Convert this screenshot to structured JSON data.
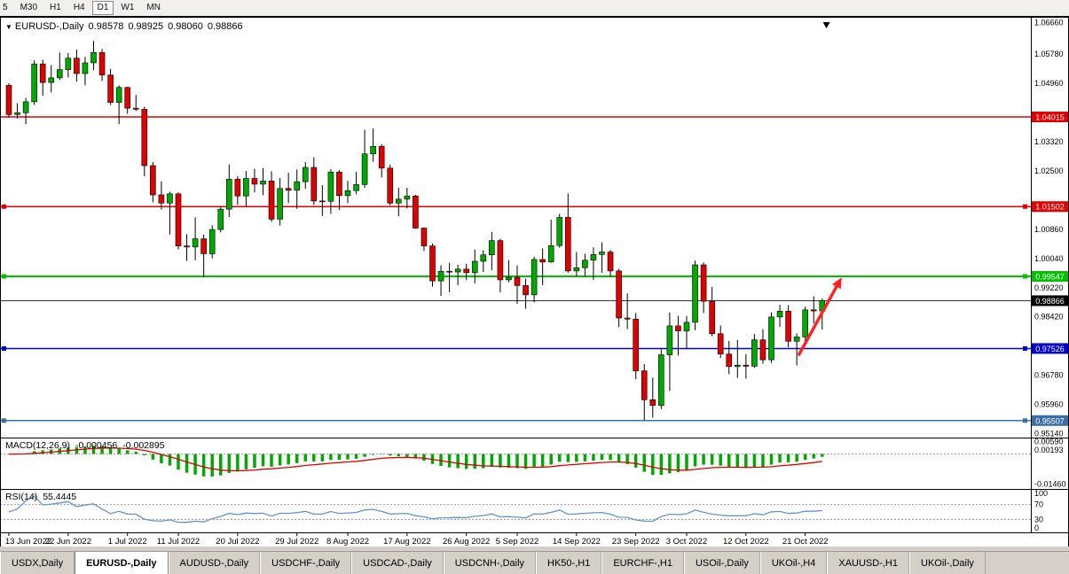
{
  "toolbar": {
    "buttons": [
      {
        "label": "5",
        "active": false
      },
      {
        "label": "M30",
        "active": false
      },
      {
        "label": "H1",
        "active": false
      },
      {
        "label": "H4",
        "active": false
      },
      {
        "label": "D1",
        "active": true
      },
      {
        "label": "W1",
        "active": false
      },
      {
        "label": "MN",
        "active": false
      }
    ]
  },
  "legend": {
    "dropdown_icon": "▼",
    "symbol": "EURUSD-,Daily",
    "open": "0.98578",
    "high": "0.98925",
    "low": "0.98060",
    "close": "0.98866"
  },
  "chart_data": {
    "type": "candlestick",
    "symbol": "EURUSD-,Daily",
    "timeframe": "Daily",
    "view": {
      "price_max": 1.0672,
      "price_min": 0.95055
    },
    "colors": {
      "bull": "#00a800",
      "bear": "#e00000",
      "wick": "#000000",
      "background": "#ffffff",
      "frame": "#000000"
    },
    "price_axis": {
      "ticks": [
        "1.06660",
        "1.05780",
        "1.04960",
        "1.03320",
        "1.02500",
        "1.00860",
        "1.00040",
        "0.99220",
        "0.98420",
        "0.96780",
        "0.95960",
        "0.95140"
      ],
      "badges": [
        {
          "text": "1.04015",
          "bg": "#e00000",
          "fg": "#ffffff"
        },
        {
          "text": "1.01502",
          "bg": "#e00000",
          "fg": "#ffffff"
        },
        {
          "text": "0.99547",
          "bg": "#00c000",
          "fg": "#ffffff"
        },
        {
          "text": "0.98866",
          "bg": "#000000",
          "fg": "#ffffff"
        },
        {
          "text": "0.97526",
          "bg": "#0000cc",
          "fg": "#ffffff"
        },
        {
          "text": "0.95507",
          "bg": "#3a6ea5",
          "fg": "#ffffff"
        }
      ]
    },
    "horizontal_lines": [
      {
        "price": 1.04015,
        "color": "#e00000",
        "width": 1.5,
        "handles": false
      },
      {
        "price": 1.01502,
        "color": "#e00000",
        "width": 1.5,
        "handles": true
      },
      {
        "price": 0.99547,
        "color": "#00c000",
        "width": 2,
        "handles": true
      },
      {
        "price": 0.98866,
        "color": "#333333",
        "width": 1,
        "handles": false
      },
      {
        "price": 0.97526,
        "color": "#0000cc",
        "width": 1.5,
        "handles": true
      },
      {
        "price": 0.95507,
        "color": "#3a6ea5",
        "width": 1.5,
        "handles": true
      }
    ],
    "trend_arrow": {
      "from_index": 93.2,
      "from_price": 0.9733,
      "to_index": 98.3,
      "to_price": 0.9952,
      "color": "#ff2020"
    },
    "shift_marker_index": 96.5,
    "date_labels": [
      {
        "index": 0,
        "text": "13 Jun 2022"
      },
      {
        "index": 7,
        "text": "22 Jun 2022"
      },
      {
        "index": 14,
        "text": "1 Jul 2022"
      },
      {
        "index": 20,
        "text": "11 Jul 2022"
      },
      {
        "index": 27,
        "text": "20 Jul 2022"
      },
      {
        "index": 34,
        "text": "29 Jul 2022"
      },
      {
        "index": 40,
        "text": "8 Aug 2022"
      },
      {
        "index": 47,
        "text": "17 Aug 2022"
      },
      {
        "index": 54,
        "text": "26 Aug 2022"
      },
      {
        "index": 60,
        "text": "5 Sep 2022"
      },
      {
        "index": 67,
        "text": "14 Sep 2022"
      },
      {
        "index": 74,
        "text": "23 Sep 2022"
      },
      {
        "index": 80,
        "text": "3 Oct 2022"
      },
      {
        "index": 87,
        "text": "12 Oct 2022"
      },
      {
        "index": 94,
        "text": "21 Oct 2022"
      }
    ],
    "ohlc": [
      [
        1.049,
        1.0496,
        1.04,
        1.0408
      ],
      [
        1.0408,
        1.044,
        1.0397,
        1.0413
      ],
      [
        1.0413,
        1.0455,
        1.0381,
        1.0444
      ],
      [
        1.0444,
        1.056,
        1.0435,
        1.055
      ],
      [
        1.055,
        1.0562,
        1.0461,
        1.0498
      ],
      [
        1.0498,
        1.0547,
        1.047,
        1.0511
      ],
      [
        1.0511,
        1.0582,
        1.0505,
        1.0534
      ],
      [
        1.0534,
        1.058,
        1.0512,
        1.0566
      ],
      [
        1.0566,
        1.059,
        1.05,
        1.0523
      ],
      [
        1.0523,
        1.057,
        1.049,
        1.0553
      ],
      [
        1.0553,
        1.0615,
        1.0532,
        1.0582
      ],
      [
        1.0582,
        1.0592,
        1.0502,
        1.0519
      ],
      [
        1.0519,
        1.0536,
        1.0435,
        1.0442
      ],
      [
        1.0442,
        1.049,
        1.0381,
        1.0484
      ],
      [
        1.0484,
        1.0486,
        1.041,
        1.0426
      ],
      [
        1.0426,
        1.0463,
        1.0418,
        1.0423
      ],
      [
        1.0423,
        1.043,
        1.0235,
        1.0265
      ],
      [
        1.0265,
        1.0275,
        1.0162,
        1.0183
      ],
      [
        1.0183,
        1.0221,
        1.0142,
        1.016
      ],
      [
        1.016,
        1.0192,
        1.0072,
        1.0186
      ],
      [
        1.0186,
        1.019,
        1.003,
        1.004
      ],
      [
        1.004,
        1.0073,
        0.9998,
        1.0037
      ],
      [
        1.0037,
        1.012,
        1.0,
        1.006
      ],
      [
        1.006,
        1.0072,
        0.9952,
        1.0018
      ],
      [
        1.0018,
        1.0098,
        1.0005,
        1.0086
      ],
      [
        1.0086,
        1.0149,
        1.0078,
        1.0143
      ],
      [
        1.0143,
        1.0268,
        1.0121,
        1.0227
      ],
      [
        1.0227,
        1.0235,
        1.0155,
        1.018
      ],
      [
        1.018,
        1.025,
        1.0152,
        1.0229
      ],
      [
        1.0229,
        1.0256,
        1.019,
        1.0213
      ],
      [
        1.0213,
        1.0258,
        1.0182,
        1.0222
      ],
      [
        1.0222,
        1.0249,
        1.0108,
        1.0115
      ],
      [
        1.0115,
        1.023,
        1.0097,
        1.0201
      ],
      [
        1.0201,
        1.0245,
        1.016,
        1.0196
      ],
      [
        1.0196,
        1.0254,
        1.0144,
        1.022
      ],
      [
        1.022,
        1.0275,
        1.02,
        1.026
      ],
      [
        1.026,
        1.0288,
        1.0155,
        1.0166
      ],
      [
        1.0166,
        1.021,
        1.0124,
        1.0165
      ],
      [
        1.0165,
        1.0255,
        1.013,
        1.0247
      ],
      [
        1.0247,
        1.0253,
        1.0141,
        1.0181
      ],
      [
        1.0181,
        1.0222,
        1.016,
        1.0195
      ],
      [
        1.0195,
        1.0248,
        1.0185,
        1.0212
      ],
      [
        1.0212,
        1.0365,
        1.0203,
        1.0298
      ],
      [
        1.0298,
        1.0369,
        1.0276,
        1.0319
      ],
      [
        1.0319,
        1.0325,
        1.0232,
        1.0258
      ],
      [
        1.0258,
        1.0268,
        1.0154,
        1.016
      ],
      [
        1.016,
        1.0203,
        1.0123,
        1.0171
      ],
      [
        1.0171,
        1.0203,
        1.0145,
        1.018
      ],
      [
        1.018,
        1.0183,
        1.0088,
        1.009
      ],
      [
        1.009,
        1.0092,
        1.0026,
        1.004
      ],
      [
        1.004,
        1.0047,
        0.9926,
        0.9942
      ],
      [
        0.9942,
        0.9986,
        0.99,
        0.9969
      ],
      [
        0.9969,
        0.9993,
        0.991,
        0.9967
      ],
      [
        0.9967,
        0.9987,
        0.993,
        0.9975
      ],
      [
        0.9975,
        0.999,
        0.9944,
        0.9965
      ],
      [
        0.9965,
        1.003,
        0.9935,
        0.9997
      ],
      [
        0.9997,
        1.0028,
        0.9967,
        1.0015
      ],
      [
        1.0015,
        1.0079,
        0.9972,
        1.0055
      ],
      [
        1.0055,
        1.006,
        0.991,
        0.9945
      ],
      [
        0.9945,
        1.0,
        0.9938,
        0.9952
      ],
      [
        0.9952,
        0.9985,
        0.9878,
        0.9929
      ],
      [
        0.9929,
        0.9948,
        0.9864,
        0.9903
      ],
      [
        0.9903,
        1.001,
        0.9882,
        1.0002
      ],
      [
        1.0002,
        1.0033,
        0.993,
        0.9995
      ],
      [
        0.9995,
        1.0114,
        0.9993,
        1.0041
      ],
      [
        1.0041,
        1.013,
        1.0035,
        1.012
      ],
      [
        1.012,
        1.0187,
        0.9965,
        0.997
      ],
      [
        0.997,
        1.0023,
        0.9955,
        0.9979
      ],
      [
        0.9979,
        1.0018,
        0.9954,
        1.0
      ],
      [
        1.0,
        1.0036,
        0.9945,
        1.0016
      ],
      [
        1.0016,
        1.005,
        0.9965,
        1.0023
      ],
      [
        1.0023,
        1.0029,
        0.9954,
        0.997
      ],
      [
        0.997,
        0.9976,
        0.9813,
        0.9838
      ],
      [
        0.9838,
        0.9907,
        0.9807,
        0.9835
      ],
      [
        0.9835,
        0.9852,
        0.9667,
        0.969
      ],
      [
        0.969,
        0.9709,
        0.9552,
        0.9609
      ],
      [
        0.9609,
        0.9671,
        0.9559,
        0.9593
      ],
      [
        0.9593,
        0.975,
        0.9583,
        0.9735
      ],
      [
        0.9735,
        0.9853,
        0.9634,
        0.9816
      ],
      [
        0.9816,
        0.9844,
        0.9733,
        0.9802
      ],
      [
        0.9802,
        0.9844,
        0.9751,
        0.9826
      ],
      [
        0.9826,
        0.9999,
        0.9804,
        0.9987
      ],
      [
        0.9987,
        0.9994,
        0.9852,
        0.9885
      ],
      [
        0.9885,
        0.9925,
        0.9787,
        0.9794
      ],
      [
        0.9794,
        0.9817,
        0.9726,
        0.9737
      ],
      [
        0.9737,
        0.9774,
        0.9681,
        0.9702
      ],
      [
        0.9702,
        0.9776,
        0.967,
        0.9706
      ],
      [
        0.9706,
        0.9737,
        0.9668,
        0.9703
      ],
      [
        0.9703,
        0.9793,
        0.9698,
        0.9777
      ],
      [
        0.9777,
        0.9807,
        0.971,
        0.9721
      ],
      [
        0.9721,
        0.9854,
        0.9712,
        0.9841
      ],
      [
        0.9841,
        0.9875,
        0.9813,
        0.9857
      ],
      [
        0.9857,
        0.9874,
        0.9756,
        0.9773
      ],
      [
        0.9773,
        0.9795,
        0.9705,
        0.9785
      ],
      [
        0.9785,
        0.987,
        0.9762,
        0.9861
      ],
      [
        0.9861,
        0.9899,
        0.9823,
        0.98578
      ],
      [
        0.98578,
        0.98925,
        0.9806,
        0.98866
      ]
    ],
    "indicators": {
      "macd": {
        "name": "MACD(12,26,9)",
        "main_value": "-0.000456",
        "signal_value": "-0.002895",
        "fast": 12,
        "slow": 26,
        "signal": 9,
        "histogram_color": "#00a800",
        "signal_color": "#dd0000",
        "axis_ticks": [
          "0.00590",
          "0.00193",
          "-0.01460"
        ],
        "range": {
          "max": 0.0075,
          "min": -0.016
        }
      },
      "rsi": {
        "name": "RSI(14)",
        "value": "55.4445",
        "period": 14,
        "line_color": "#6593cf",
        "levels": [
          70,
          30
        ],
        "axis_ticks": [
          "100",
          "70",
          "30",
          "0"
        ],
        "range": {
          "max": 100,
          "min": 0
        }
      }
    }
  },
  "tabs": [
    {
      "label": "USDX,Daily",
      "active": false
    },
    {
      "label": "EURUSD-,Daily",
      "active": true
    },
    {
      "label": "AUDUSD-,Daily",
      "active": false
    },
    {
      "label": "USDCHF-,Daily",
      "active": false
    },
    {
      "label": "USDCAD-,Daily",
      "active": false
    },
    {
      "label": "USDCNH-,Daily",
      "active": false
    },
    {
      "label": "HK50-,H1",
      "active": false
    },
    {
      "label": "EURCHF-,H1",
      "active": false
    },
    {
      "label": "USOil-,Daily",
      "active": false
    },
    {
      "label": "UKOil-,H4",
      "active": false
    },
    {
      "label": "XAUUSD-,H1",
      "active": false
    },
    {
      "label": "UKOil-,Daily",
      "active": false
    }
  ]
}
